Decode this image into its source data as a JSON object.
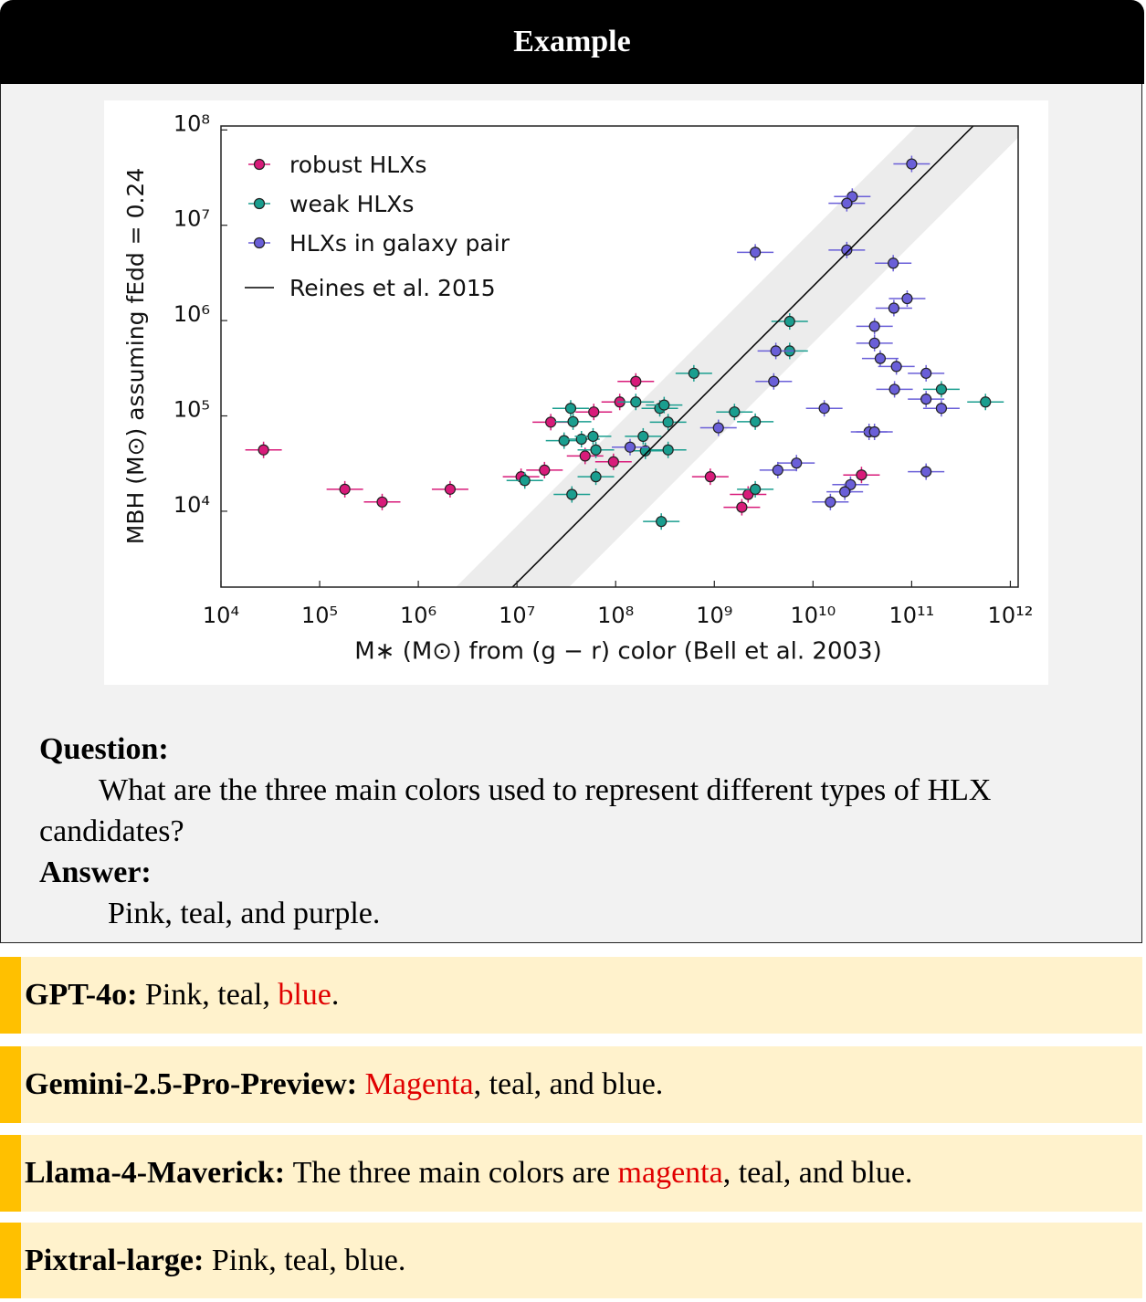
{
  "header": {
    "title": "Example"
  },
  "chart_data": {
    "type": "scatter",
    "xlabel": "M∗ (M⊙) from (g − r) color (Bell et al. 2003)",
    "ylabel": "MBH (M⊙) assuming fEdd = 0.24",
    "xscale": "log",
    "yscale": "log",
    "legend": "upper left",
    "xlim": [
      10000,
      1200000000000
    ],
    "ylim": [
      1600,
      110000000
    ],
    "xticks": [
      {
        "value": 10000,
        "label": "10⁴"
      },
      {
        "value": 100000,
        "label": "10⁵"
      },
      {
        "value": 1000000,
        "label": "10⁶"
      },
      {
        "value": 10000000,
        "label": "10⁷"
      },
      {
        "value": 100000000,
        "label": "10⁸"
      },
      {
        "value": 1000000000,
        "label": "10⁹"
      },
      {
        "value": 10000000000,
        "label": "10¹⁰"
      },
      {
        "value": 100000000000,
        "label": "10¹¹"
      },
      {
        "value": 1000000000000,
        "label": "10¹²"
      }
    ],
    "yticks": [
      {
        "value": 10000,
        "label": "10⁴"
      },
      {
        "value": 100000,
        "label": "10⁵"
      },
      {
        "value": 1000000,
        "label": "10⁶"
      },
      {
        "value": 10000000,
        "label": "10⁷"
      },
      {
        "value": 100000000,
        "label": "10⁸"
      }
    ],
    "series": [
      {
        "name": "robust HLXs",
        "color": "#d81b7a",
        "x": [
          27000,
          180000,
          430000,
          2100000,
          11000000,
          19000000,
          22000000,
          49000000,
          60000000,
          95000000,
          110000000,
          160000000,
          910000000,
          1900000000,
          2200000000,
          31000000000
        ],
        "values": [
          44000,
          17000,
          12500,
          17000,
          23000,
          27000,
          86000,
          38000,
          110000,
          33000,
          140000,
          230000,
          23000,
          11000,
          15000,
          24000
        ]
      },
      {
        "name": "weak HLXs",
        "color": "#1a9e8f",
        "x": [
          12000000,
          35000000,
          37000000,
          30000000,
          36000000,
          45000000,
          59000000,
          63000000,
          63000000,
          160000000,
          190000000,
          200000000,
          280000000,
          310000000,
          340000000,
          340000000,
          290000000,
          620000000,
          1600000000,
          2600000000,
          2600000000,
          5800000000,
          5800000000,
          200000000000,
          560000000000
        ],
        "values": [
          21000,
          120000,
          87000,
          55000,
          15000,
          57000,
          61000,
          44000,
          23000,
          140000,
          61000,
          43000,
          120000,
          130000,
          86000,
          44000,
          7800,
          280000,
          110000,
          87000,
          17000,
          980000,
          480000,
          190000,
          140000
        ]
      },
      {
        "name": "HLXs in galaxy pair",
        "color": "#6a5fd8",
        "x": [
          100000000000,
          25000000000,
          22000000000,
          2600000000,
          22000000000,
          65000000000,
          90000000000,
          66000000000,
          42000000000,
          42000000000,
          4200000000,
          48000000000,
          70000000000,
          140000000000,
          4000000000,
          67000000000,
          140000000000,
          200000000000,
          13000000000,
          1100000000,
          37000000000,
          42000000000,
          140000000,
          6800000000,
          4400000000,
          140000000000,
          24000000000,
          21000000000,
          15000000000
        ],
        "values": [
          44000000,
          20000000,
          17000000,
          5200000,
          5500000,
          4000000,
          1700000,
          1350000,
          870000,
          580000,
          480000,
          400000,
          330000,
          280000,
          230000,
          190000,
          150000,
          120000,
          120000,
          75000,
          68000,
          68000,
          47000,
          32000,
          27000,
          26000,
          19000,
          16000,
          12500
        ]
      },
      {
        "name": "Reines et al. 2015",
        "type": "line",
        "color": "#000000",
        "x": [
          9000000,
          420000000000
        ],
        "values": [
          1600,
          110000000
        ]
      }
    ]
  },
  "question": {
    "label": "Question:",
    "text": "What are the three main colors used to represent different types of HLX candidates?"
  },
  "answer": {
    "label": "Answer:",
    "text": "Pink, teal, and purple."
  },
  "responses": [
    {
      "model": "GPT-4o:",
      "segments": [
        {
          "text": "Pink, teal, "
        },
        {
          "text": "blue",
          "error": true
        },
        {
          "text": "."
        }
      ]
    },
    {
      "model": "Gemini-2.5-Pro-Preview:",
      "segments": [
        {
          "text": "Magenta",
          "error": true
        },
        {
          "text": ", teal, and blue."
        }
      ]
    },
    {
      "model": "Llama-4-Maverick:",
      "segments": [
        {
          "text": "The three main colors are "
        },
        {
          "text": "magenta",
          "error": true
        },
        {
          "text": ", teal, and blue."
        }
      ]
    },
    {
      "model": "Pixtral-large:",
      "segments": [
        {
          "text": "Pink, teal, blue."
        }
      ]
    }
  ]
}
